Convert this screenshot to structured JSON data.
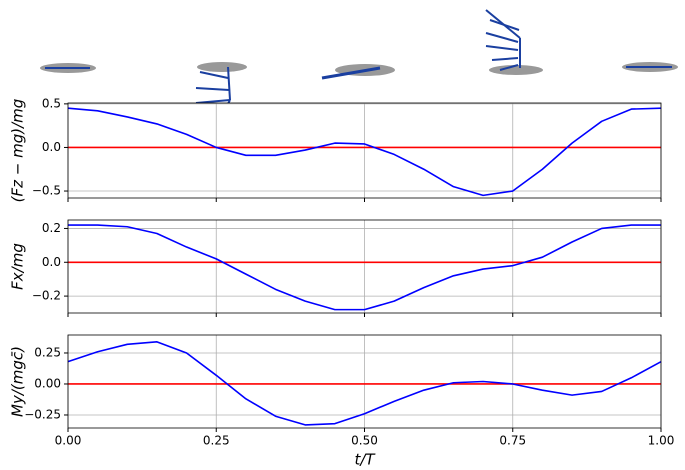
{
  "chart_data": [
    {
      "type": "line",
      "ylabel": "(Fz − mg)/mg",
      "color": "#0000ff",
      "reference_line": 0,
      "reference_color": "#ff0000",
      "grid": true,
      "x": [
        0,
        0.05,
        0.1,
        0.15,
        0.2,
        0.25,
        0.3,
        0.35,
        0.4,
        0.45,
        0.5,
        0.55,
        0.6,
        0.65,
        0.7,
        0.75,
        0.8,
        0.85,
        0.9,
        0.95,
        1.0
      ],
      "values": [
        0.45,
        0.42,
        0.35,
        0.27,
        0.15,
        0.0,
        -0.09,
        -0.09,
        -0.03,
        0.05,
        0.04,
        -0.08,
        -0.25,
        -0.45,
        -0.55,
        -0.5,
        -0.25,
        0.05,
        0.3,
        0.44,
        0.45
      ],
      "xlim": [
        0,
        1
      ],
      "xticks": [
        0,
        0.25,
        0.5,
        0.75,
        1
      ],
      "ylim": [
        -0.58,
        0.51
      ],
      "yticks": [
        {
          "value": 0.5,
          "label": "0.5"
        },
        {
          "value": 0,
          "label": "0.0"
        },
        {
          "value": -0.5,
          "label": "−0.5"
        }
      ]
    },
    {
      "type": "line",
      "ylabel": "Fx/mg",
      "color": "#0000ff",
      "reference_line": 0,
      "reference_color": "#ff0000",
      "grid": true,
      "x": [
        0,
        0.05,
        0.1,
        0.15,
        0.2,
        0.25,
        0.3,
        0.35,
        0.4,
        0.45,
        0.5,
        0.55,
        0.6,
        0.65,
        0.7,
        0.75,
        0.8,
        0.85,
        0.9,
        0.95,
        1.0
      ],
      "values": [
        0.22,
        0.22,
        0.21,
        0.17,
        0.09,
        0.02,
        -0.07,
        -0.16,
        -0.23,
        -0.28,
        -0.28,
        -0.23,
        -0.15,
        -0.08,
        -0.04,
        -0.02,
        0.03,
        0.12,
        0.2,
        0.22,
        0.22
      ],
      "xlim": [
        0,
        1
      ],
      "xticks": [
        0,
        0.25,
        0.5,
        0.75,
        1
      ],
      "ylim": [
        -0.3,
        0.25
      ],
      "yticks": [
        {
          "value": 0.2,
          "label": "0.2"
        },
        {
          "value": 0,
          "label": "0.0"
        },
        {
          "value": -0.2,
          "label": "−0.2"
        }
      ]
    },
    {
      "type": "line",
      "ylabel": "My/(mgc̄)",
      "xlabel": "t/T",
      "color": "#0000ff",
      "reference_line": 0,
      "reference_color": "#ff0000",
      "grid": true,
      "x": [
        0,
        0.05,
        0.1,
        0.15,
        0.2,
        0.25,
        0.3,
        0.35,
        0.4,
        0.45,
        0.5,
        0.55,
        0.6,
        0.65,
        0.7,
        0.75,
        0.8,
        0.85,
        0.9,
        0.95,
        1.0
      ],
      "values": [
        0.18,
        0.26,
        0.32,
        0.34,
        0.25,
        0.07,
        -0.12,
        -0.26,
        -0.33,
        -0.32,
        -0.24,
        -0.14,
        -0.05,
        0.01,
        0.02,
        0.0,
        -0.05,
        -0.09,
        -0.06,
        0.05,
        0.18
      ],
      "xlim": [
        0,
        1
      ],
      "xticks": [
        {
          "value": 0,
          "label": "0.00"
        },
        {
          "value": 0.25,
          "label": "0.25"
        },
        {
          "value": 0.5,
          "label": "0.50"
        },
        {
          "value": 0.75,
          "label": "0.75"
        },
        {
          "value": 1,
          "label": "1.00"
        }
      ],
      "ylim": [
        -0.355,
        0.395
      ],
      "yticks": [
        {
          "value": 0.25,
          "label": "0.25"
        },
        {
          "value": 0,
          "label": "0.00"
        },
        {
          "value": -0.25,
          "label": "−0.25"
        }
      ]
    }
  ]
}
